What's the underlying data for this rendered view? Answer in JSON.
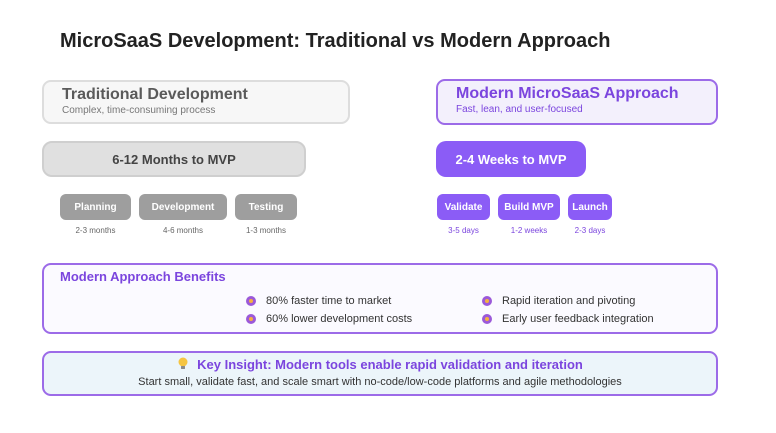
{
  "title": "MicroSaaS Development: Traditional vs Modern Approach",
  "traditional": {
    "heading": "Traditional Development",
    "subheading": "Complex, time-consuming process",
    "timeline": "6-12 Months to MVP",
    "phases": [
      {
        "label": "Planning",
        "duration": "2-3 months"
      },
      {
        "label": "Development",
        "duration": "4-6 months"
      },
      {
        "label": "Testing",
        "duration": "1-3 months"
      }
    ]
  },
  "modern": {
    "heading": "Modern MicroSaaS Approach",
    "subheading": "Fast, lean, and user-focused",
    "timeline": "2-4 Weeks to MVP",
    "phases": [
      {
        "label": "Validate",
        "duration": "3-5 days"
      },
      {
        "label": "Build MVP",
        "duration": "1-2 weeks"
      },
      {
        "label": "Launch",
        "duration": "2-3 days"
      }
    ]
  },
  "benefits": {
    "title": "Modern Approach Benefits",
    "items": [
      "80% faster time to market",
      "60% lower development costs",
      "Rapid iteration and pivoting",
      "Early user feedback integration"
    ]
  },
  "insight": {
    "icon": "lightbulb-icon",
    "title": "Key Insight: Modern tools enable rapid validation and iteration",
    "body": "Start small, validate fast, and scale smart with no-code/low-code platforms and agile methodologies"
  },
  "colors": {
    "accent": "#8b5cf6",
    "accent_text": "#7b45de",
    "traditional_gray": "#9e9e9e"
  }
}
